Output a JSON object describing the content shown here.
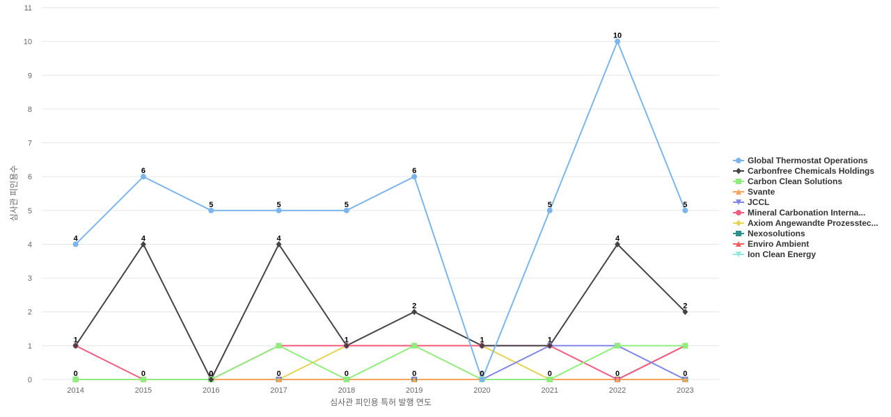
{
  "chart_data": {
    "type": "line",
    "title": "",
    "xlabel": "심사관 피인용 특허 발행 연도",
    "ylabel": "심사관 피인용수",
    "x": [
      "2014",
      "2015",
      "2016",
      "2017",
      "2018",
      "2019",
      "2020",
      "2021",
      "2022",
      "2023"
    ],
    "yticks": [
      "0",
      "1",
      "2",
      "3",
      "4",
      "5",
      "6",
      "7",
      "8",
      "9",
      "10",
      "11"
    ],
    "ylim": [
      0,
      11
    ],
    "grid": true,
    "legend_position": "right",
    "series": [
      {
        "name": "Global Thermostat Operations",
        "color": "#7cb5ec",
        "marker": "circle",
        "values": [
          4,
          6,
          5,
          5,
          5,
          6,
          0,
          5,
          10,
          5
        ]
      },
      {
        "name": "Carbonfree Chemicals Holdings",
        "color": "#434348",
        "marker": "diamond",
        "values": [
          1,
          4,
          0,
          4,
          1,
          2,
          1,
          1,
          4,
          2
        ]
      },
      {
        "name": "Carbon Clean Solutions",
        "color": "#90ed7d",
        "marker": "square",
        "values": [
          0,
          0,
          0,
          1,
          0,
          1,
          0,
          0,
          1,
          1
        ]
      },
      {
        "name": "Svante",
        "color": "#f7a35c",
        "marker": "triangle",
        "values": [
          0,
          0,
          0,
          0,
          0,
          0,
          0,
          0,
          0,
          0
        ]
      },
      {
        "name": "JCCL",
        "color": "#8085e9",
        "marker": "triangle-down",
        "values": [
          0,
          0,
          0,
          0,
          0,
          0,
          0,
          1,
          1,
          0
        ]
      },
      {
        "name": "Mineral Carbonation Interna...",
        "color": "#f15c80",
        "marker": "circle",
        "values": [
          1,
          0,
          0,
          1,
          1,
          1,
          1,
          1,
          0,
          1
        ]
      },
      {
        "name": "Axiom Angewandte Prozesstec...",
        "color": "#e4d354",
        "marker": "diamond",
        "values": [
          0,
          0,
          0,
          0,
          1,
          1,
          1,
          0,
          0,
          0
        ]
      },
      {
        "name": "Nexosolutions",
        "color": "#2b908f",
        "marker": "square",
        "values": [
          0,
          0,
          0,
          0,
          0,
          0,
          0,
          0,
          0,
          0
        ]
      },
      {
        "name": "Enviro Ambient",
        "color": "#f45b5b",
        "marker": "triangle",
        "values": [
          0,
          0,
          0,
          0,
          0,
          0,
          0,
          0,
          0,
          1
        ]
      },
      {
        "name": "Ion Clean Energy",
        "color": "#91e8e1",
        "marker": "triangle-down",
        "values": [
          0,
          0,
          0,
          0,
          0,
          0,
          0,
          0,
          0,
          0
        ]
      }
    ],
    "data_labels": [
      {
        "series": 0,
        "values": [
          4,
          6,
          5,
          5,
          5,
          6,
          0,
          5,
          10,
          5
        ]
      },
      {
        "series": 1,
        "values": [
          1,
          4,
          0,
          4,
          1,
          2,
          1,
          1,
          4,
          2
        ]
      },
      {
        "series": 9,
        "values": [
          0,
          0,
          0,
          0,
          0,
          0,
          0,
          0,
          0,
          0
        ]
      }
    ]
  }
}
